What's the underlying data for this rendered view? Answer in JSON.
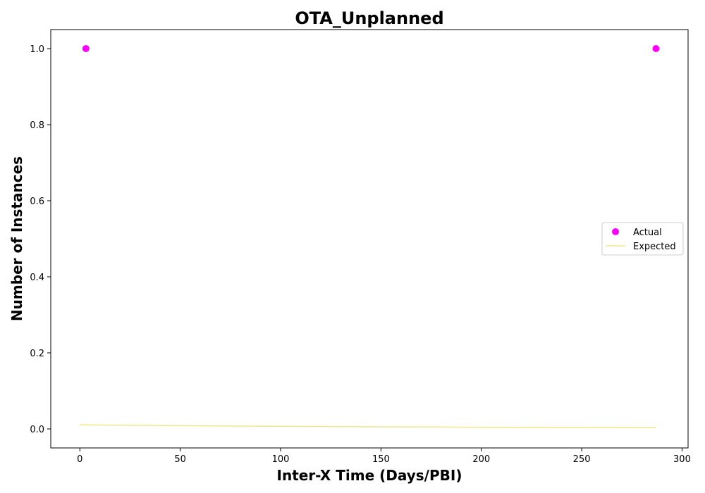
{
  "chart_data": {
    "type": "scatter",
    "title": "OTA_Unplanned",
    "xlabel": "Inter-X Time (Days/PBI)",
    "ylabel": "Number of Instances",
    "xlim": [
      -14.5,
      303
    ],
    "ylim": [
      -0.05,
      1.05
    ],
    "x_ticks": [
      0,
      50,
      100,
      150,
      200,
      250,
      300
    ],
    "y_ticks": [
      0.0,
      0.2,
      0.4,
      0.6,
      0.8,
      1.0
    ],
    "x_tick_labels": [
      "0",
      "50",
      "100",
      "150",
      "200",
      "250",
      "300"
    ],
    "y_tick_labels": [
      "0.0",
      "0.2",
      "0.4",
      "0.6",
      "0.8",
      "1.0"
    ],
    "grid": false,
    "legend_position": "center-right",
    "series": [
      {
        "name": "Actual",
        "kind": "scatter",
        "color": "#ff00ff",
        "x": [
          3,
          287
        ],
        "y": [
          1.0,
          1.0
        ]
      },
      {
        "name": "Expected",
        "kind": "line",
        "color": "#f0e68c",
        "x": [
          0,
          50,
          100,
          150,
          200,
          250,
          287
        ],
        "y": [
          0.0105,
          0.0085,
          0.0068,
          0.0055,
          0.0044,
          0.0035,
          0.003
        ]
      }
    ]
  }
}
